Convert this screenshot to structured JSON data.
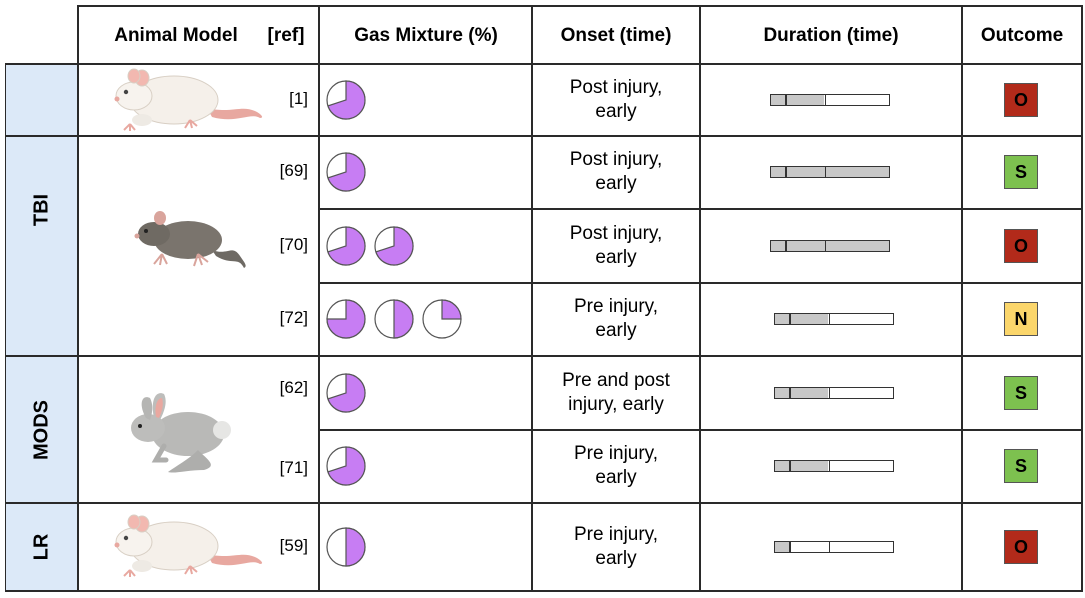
{
  "headers": {
    "animal_model": "Animal Model",
    "ref": "[ref]",
    "gas_mixture": "Gas Mixture (%)",
    "onset": "Onset (time)",
    "duration": "Duration (time)",
    "outcome": "Outcome"
  },
  "groups": [
    {
      "label": "TBI",
      "rows": [
        0,
        1,
        2,
        3
      ]
    },
    {
      "label": "MODS",
      "rows": [
        4,
        5
      ]
    },
    {
      "label": "LR",
      "rows": [
        6
      ]
    }
  ],
  "colors": {
    "group_bg": "#dce9f8",
    "pie_fill": "#c77df3",
    "duration_fill": "#c8c8c8",
    "outcome_O": "#b22a1a",
    "outcome_S": "#7dc14f",
    "outcome_N": "#fbd66b"
  },
  "rows": [
    {
      "ref": "[1]",
      "animal": "white-rat",
      "gas_fractions": [
        0.7
      ],
      "onset": [
        "Post injury,",
        "early"
      ],
      "duration": {
        "ticks": [
          0.12,
          0.45
        ],
        "fill_to": 0.45
      },
      "outcome": "O"
    },
    {
      "ref": "[69]",
      "animal": "gray-rat",
      "gas_fractions": [
        0.7
      ],
      "onset": [
        "Post injury,",
        "early"
      ],
      "duration": {
        "ticks": [
          0.12,
          0.45
        ],
        "fill_to": 1.0
      },
      "outcome": "S"
    },
    {
      "ref": "[70]",
      "animal": "gray-rat",
      "gas_fractions": [
        0.7,
        0.7
      ],
      "onset": [
        "Post injury,",
        "early"
      ],
      "duration": {
        "ticks": [
          0.12,
          0.45
        ],
        "fill_to": 1.0
      },
      "outcome": "O"
    },
    {
      "ref": "[72]",
      "animal": "gray-rat",
      "gas_fractions": [
        0.75,
        0.5,
        0.25
      ],
      "onset": [
        "Pre injury,",
        "early"
      ],
      "duration": {
        "ticks": [
          0.12,
          0.45
        ],
        "fill_to": 0.45
      },
      "outcome": "N"
    },
    {
      "ref": "[62]",
      "animal": "rabbit",
      "gas_fractions": [
        0.7
      ],
      "onset": [
        "Pre and post",
        "injury, early"
      ],
      "duration": {
        "ticks": [
          0.12,
          0.45
        ],
        "fill_to": 0.45
      },
      "outcome": "S"
    },
    {
      "ref": "[71]",
      "animal": "rabbit",
      "gas_fractions": [
        0.7
      ],
      "onset": [
        "Pre injury,",
        "early"
      ],
      "duration": {
        "ticks": [
          0.12,
          0.45
        ],
        "fill_to": 0.45
      },
      "outcome": "S"
    },
    {
      "ref": "[59]",
      "animal": "white-rat",
      "gas_fractions": [
        0.5
      ],
      "onset": [
        "Pre injury,",
        "early"
      ],
      "duration": {
        "ticks": [
          0.12,
          0.45
        ],
        "fill_to": 0.12
      },
      "outcome": "O"
    }
  ]
}
